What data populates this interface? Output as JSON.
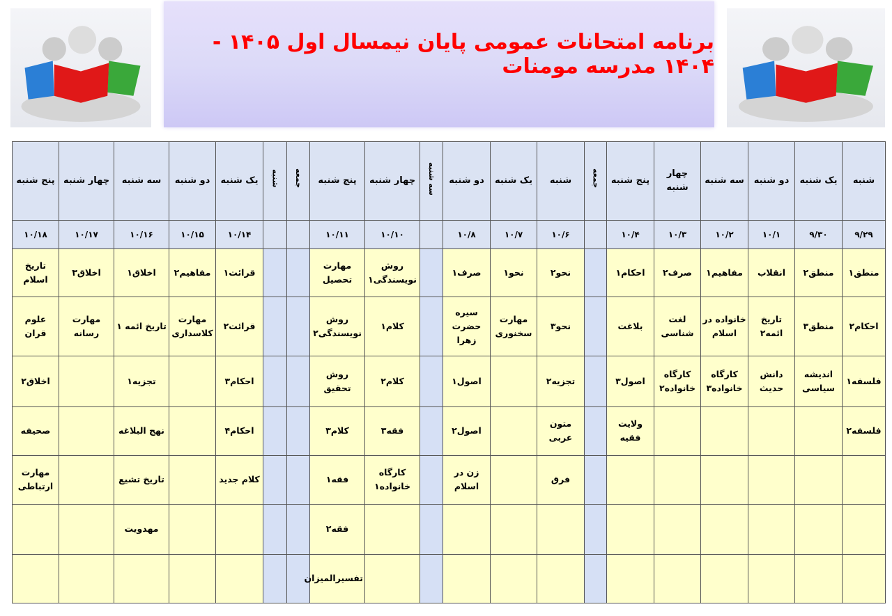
{
  "title": "برنامه امتحانات عمومی پایان نیمسال اول ۱۴۰۵ - ۱۴۰۴ مدرسه مومنات",
  "colors": {
    "title": "#ff0000",
    "header_bg": "#dbe3f3",
    "cell_bg": "#ffffcc",
    "holiday_bg": "#d6e0f5"
  },
  "images": [
    "students-reading-books-illustration",
    "students-reading-books-illustration"
  ],
  "columns": [
    {
      "day": "شنبه",
      "date": "۹/۲۹"
    },
    {
      "day": "یک شنبه",
      "date": "۹/۳۰"
    },
    {
      "day": "دو شنبه",
      "date": "۱۰/۱"
    },
    {
      "day": "سه شنبه",
      "date": "۱۰/۲"
    },
    {
      "day": "چهار شنبه",
      "date": "۱۰/۳"
    },
    {
      "day": "پنج شنبه",
      "date": "۱۰/۴"
    },
    {
      "day": "جمعه",
      "date": "",
      "off": true
    },
    {
      "day": "شنبه",
      "date": "۱۰/۶"
    },
    {
      "day": "یک شنبه",
      "date": "۱۰/۷"
    },
    {
      "day": "دو شنبه",
      "date": "۱۰/۸"
    },
    {
      "day": "سه شنبه",
      "date": "",
      "off": true
    },
    {
      "day": "چهار شنبه",
      "date": "۱۰/۱۰"
    },
    {
      "day": "پنج شنبه",
      "date": "۱۰/۱۱"
    },
    {
      "day": "جمعه",
      "date": "",
      "off": true
    },
    {
      "day": "شنبه",
      "date": "",
      "off": true
    },
    {
      "day": "یک شنبه",
      "date": "۱۰/۱۴"
    },
    {
      "day": "دو شنبه",
      "date": "۱۰/۱۵"
    },
    {
      "day": "سه شنبه",
      "date": "۱۰/۱۶"
    },
    {
      "day": "چهار شنبه",
      "date": "۱۰/۱۷"
    },
    {
      "day": "پنج شنبه",
      "date": "۱۰/۱۸"
    }
  ],
  "rows": [
    [
      "منطق۱",
      "منطق۲",
      "انقلاب",
      "مفاهیم۱",
      "صرف۲",
      "احکام۱",
      "",
      "نحو۲",
      "نحو۱",
      "صرف۱",
      "",
      "روش نویسندگی۱",
      "مهارت تحصیل",
      "",
      "",
      "قرائت۱",
      "مفاهیم۲",
      "اخلاق۱",
      "اخلاق۳",
      "تاریخ اسلام"
    ],
    [
      "احکام۲",
      "منطق۳",
      "تاریخ ائمه۲",
      "خانواده در اسلام",
      "لغت شناسی",
      "بلاغت",
      "",
      "نحو۳",
      "مهارت سخنوری",
      "سیره حضرت زهرا",
      "",
      "کلام۱",
      "روش نویسندگی۲",
      "",
      "",
      "قرائت۲",
      "مهارت کلاسداری",
      "تاریخ ائمه ۱",
      "مهارت رسانه",
      "علوم قران"
    ],
    [
      "فلسفه۱",
      "اندیشه سیاسی",
      "دانش حدیث",
      "کارگاه خانواده۳",
      "کارگاه خانواده۲",
      "اصول۳",
      "",
      "تجزیه۲",
      "",
      "اصول۱",
      "",
      "کلام۲",
      "روش تحقیق",
      "",
      "",
      "احکام۳",
      "",
      "تجزیه۱",
      "",
      "اخلاق۲"
    ],
    [
      "فلسفه۲",
      "",
      "",
      "",
      "",
      "ولایت فقیه",
      "",
      "متون عربی",
      "",
      "اصول۲",
      "",
      "فقه۳",
      "کلام۳",
      "",
      "",
      "احکام۴",
      "",
      "نهج البلاغه",
      "",
      "صحیفه"
    ],
    [
      "",
      "",
      "",
      "",
      "",
      "",
      "",
      "فرق",
      "",
      "زن در اسلام",
      "",
      "کارگاه خانواده۱",
      "فقه۱",
      "",
      "",
      "کلام جدید",
      "",
      "تاریخ تشیع",
      "",
      "مهارت ارتباطی"
    ],
    [
      "",
      "",
      "",
      "",
      "",
      "",
      "",
      "",
      "",
      "",
      "",
      "",
      "فقه۲",
      "",
      "",
      "",
      "",
      "مهدویت",
      "",
      ""
    ],
    [
      "",
      "",
      "",
      "",
      "",
      "",
      "",
      "",
      "",
      "",
      "",
      "",
      "تفسیرالمیزان",
      "",
      "",
      "",
      "",
      "",
      "",
      ""
    ]
  ]
}
